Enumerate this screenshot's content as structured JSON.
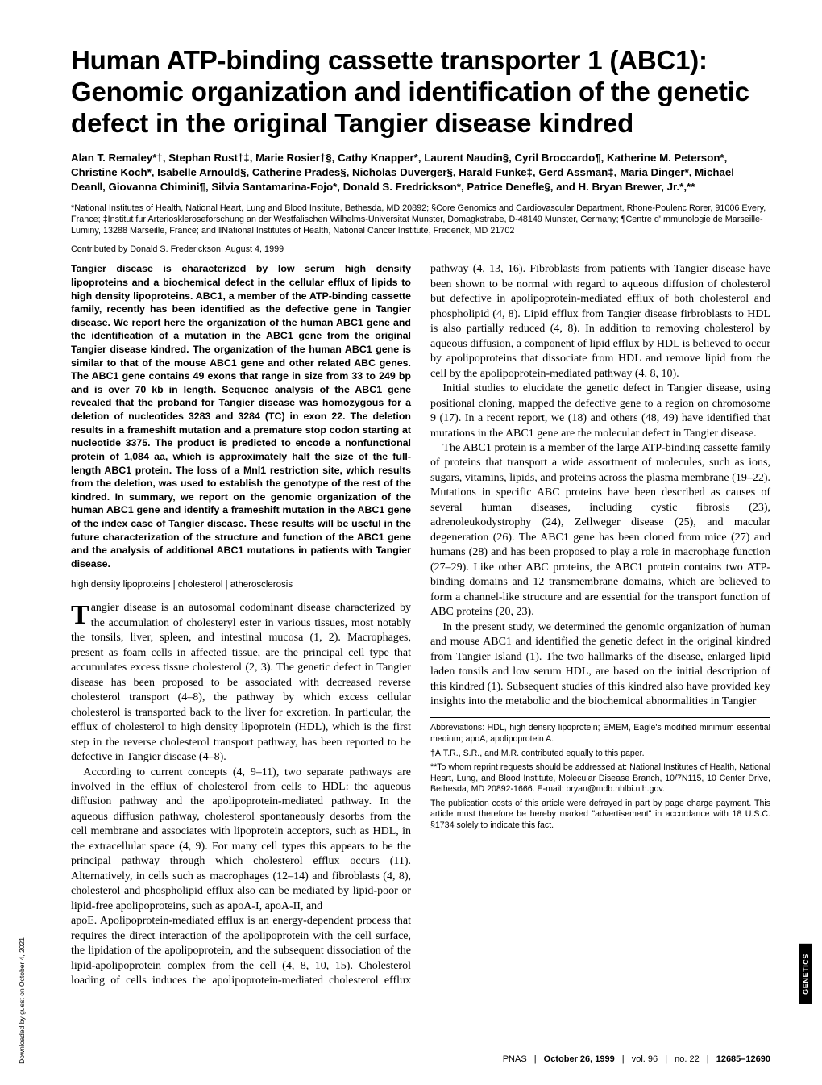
{
  "title": "Human ATP-binding cassette transporter 1 (ABC1): Genomic organization and identification of the genetic defect in the original Tangier disease kindred",
  "authors": "Alan T. Remaley*†, Stephan Rust†‡, Marie Rosier†§, Cathy Knapper*, Laurent Naudin§, Cyril Broccardo¶, Katherine M. Peterson*, Christine Koch*, Isabelle Arnould§, Catherine Prades§, Nicholas Duverger§, Harald Funke‡, Gerd Assman‡, Maria Dinger*, Michael Dean‖, Giovanna Chimini¶, Silvia Santamarina-Fojo*, Donald S. Fredrickson*, Patrice Denefle§, and H. Bryan Brewer, Jr.*,**",
  "affiliations": "*National Institutes of Health, National Heart, Lung and Blood Institute, Bethesda, MD 20892; §Core Genomics and Cardiovascular Department, Rhone-Poulenc Rorer, 91006 Every, France; ‡Institut fur Arterioskleroseforschung an der Westfalischen Wilhelms-Universitat Munster, Domagkstrabe, D-48149 Munster, Germany; ¶Centre d'Immunologie de Marseille-Luminy, 13288 Marseille, France; and ‖National Institutes of Health, National Cancer Institute, Frederick, MD 21702",
  "contributed": "Contributed by Donald S. Frederickson, August 4, 1999",
  "abstract": "Tangier disease is characterized by low serum high density lipoproteins and a biochemical defect in the cellular efflux of lipids to high density lipoproteins. ABC1, a member of the ATP-binding cassette family, recently has been identified as the defective gene in Tangier disease. We report here the organization of the human ABC1 gene and the identification of a mutation in the ABC1 gene from the original Tangier disease kindred. The organization of the human ABC1 gene is similar to that of the mouse ABC1 gene and other related ABC genes. The ABC1 gene contains 49 exons that range in size from 33 to 249 bp and is over 70 kb in length. Sequence analysis of the ABC1 gene revealed that the proband for Tangier disease was homozygous for a deletion of nucleotides 3283 and 3284 (TC) in exon 22. The deletion results in a frameshift mutation and a premature stop codon starting at nucleotide 3375. The product is predicted to encode a nonfunctional protein of 1,084 aa, which is approximately half the size of the full-length ABC1 protein. The loss of a Mnl1 restriction site, which results from the deletion, was used to establish the genotype of the rest of the kindred. In summary, we report on the genomic organization of the human ABC1 gene and identify a frameshift mutation in the ABC1 gene of the index case of Tangier disease. These results will be useful in the future characterization of the structure and function of the ABC1 gene and the analysis of additional ABC1 mutations in patients with Tangier disease.",
  "keywords": "high density lipoproteins | cholesterol | atherosclerosis",
  "body": {
    "p1": "Tangier disease is an autosomal codominant disease characterized by the accumulation of cholesteryl ester in various tissues, most notably the tonsils, liver, spleen, and intestinal mucosa (1, 2). Macrophages, present as foam cells in affected tissue, are the principal cell type that accumulates excess tissue cholesterol (2, 3). The genetic defect in Tangier disease has been proposed to be associated with decreased reverse cholesterol transport (4–8), the pathway by which excess cellular cholesterol is transported back to the liver for excretion. In particular, the efflux of cholesterol to high density lipoprotein (HDL), which is the first step in the reverse cholesterol transport pathway, has been reported to be defective in Tangier disease (4–8).",
    "p2": "According to current concepts (4, 9–11), two separate pathways are involved in the efflux of cholesterol from cells to HDL: the aqueous diffusion pathway and the apolipoprotein-mediated pathway. In the aqueous diffusion pathway, cholesterol spontaneously desorbs from the cell membrane and associates with lipoprotein acceptors, such as HDL, in the extracellular space (4, 9). For many cell types this appears to be the principal pathway through which cholesterol efflux occurs (11). Alternatively, in cells such as macrophages (12–14) and fibroblasts (4, 8), cholesterol and phospholipid efflux also can be mediated by lipid-poor or lipid-free apolipoproteins, such as apoA-I, apoA-II, and",
    "p3": "apoE. Apolipoprotein-mediated efflux is an energy-dependent process that requires the direct interaction of the apolipoprotein with the cell surface, the lipidation of the apolipoprotein, and the subsequent dissociation of the lipid-apolipoprotein complex from the cell (4, 8, 10, 15). Cholesterol loading of cells induces the apolipoprotein-mediated cholesterol efflux pathway (4, 13, 16). Fibroblasts from patients with Tangier disease have been shown to be normal with regard to aqueous diffusion of cholesterol but defective in apolipoprotein-mediated efflux of both cholesterol and phospholipid (4, 8). Lipid efflux from Tangier disease firbroblasts to HDL is also partially reduced (4, 8). In addition to removing cholesterol by aqueous diffusion, a component of lipid efflux by HDL is believed to occur by apolipoproteins that dissociate from HDL and remove lipid from the cell by the apolipoprotein-mediated pathway (4, 8, 10).",
    "p4": "Initial studies to elucidate the genetic defect in Tangier disease, using positional cloning, mapped the defective gene to a region on chromosome 9 (17). In a recent report, we (18) and others (48, 49) have identified that mutations in the ABC1 gene are the molecular defect in Tangier disease.",
    "p5": "The ABC1 protein is a member of the large ATP-binding cassette family of proteins that transport a wide assortment of molecules, such as ions, sugars, vitamins, lipids, and proteins across the plasma membrane (19–22). Mutations in specific ABC proteins have been described as causes of several human diseases, including cystic fibrosis (23), adrenoleukodystrophy (24), Zellweger disease (25), and macular degeneration (26). The ABC1 gene has been cloned from mice (27) and humans (28) and has been proposed to play a role in macrophage function (27–29). Like other ABC proteins, the ABC1 protein contains two ATP-binding domains and 12 transmembrane domains, which are believed to form a channel-like structure and are essential for the transport function of ABC proteins (20, 23).",
    "p6": "In the present study, we determined the genomic organization of human and mouse ABC1 and identified the genetic defect in the original kindred from Tangier Island (1). The two hallmarks of the disease, enlarged lipid laden tonsils and low serum HDL, are based on the initial description of this kindred (1). Subsequent studies of this kindred also have provided key insights into the metabolic and the biochemical abnormalities in Tangier"
  },
  "footnotes": {
    "abbr": "Abbreviations: HDL, high density lipoprotein; EMEM, Eagle's modified minimum essential medium; apoA, apolipoprotein A.",
    "equal": "†A.T.R., S.R., and M.R. contributed equally to this paper.",
    "reprint": "**To whom reprint requests should be addressed at: National Institutes of Health, National Heart, Lung, and Blood Institute, Molecular Disease Branch, 10/7N115, 10 Center Drive, Bethesda, MD 20892-1666. E-mail: bryan@mdb.nhlbi.nih.gov.",
    "pub": "The publication costs of this article were defrayed in part by page charge payment. This article must therefore be hereby marked \"advertisement\" in accordance with 18 U.S.C. §1734 solely to indicate this fact."
  },
  "footer": {
    "journal": "PNAS",
    "date": "October 26, 1999",
    "vol": "vol. 96",
    "no": "no. 22",
    "pages": "12685–12690"
  },
  "side_label": "GENETICS",
  "download_label": "Downloaded by guest on October 4, 2021"
}
